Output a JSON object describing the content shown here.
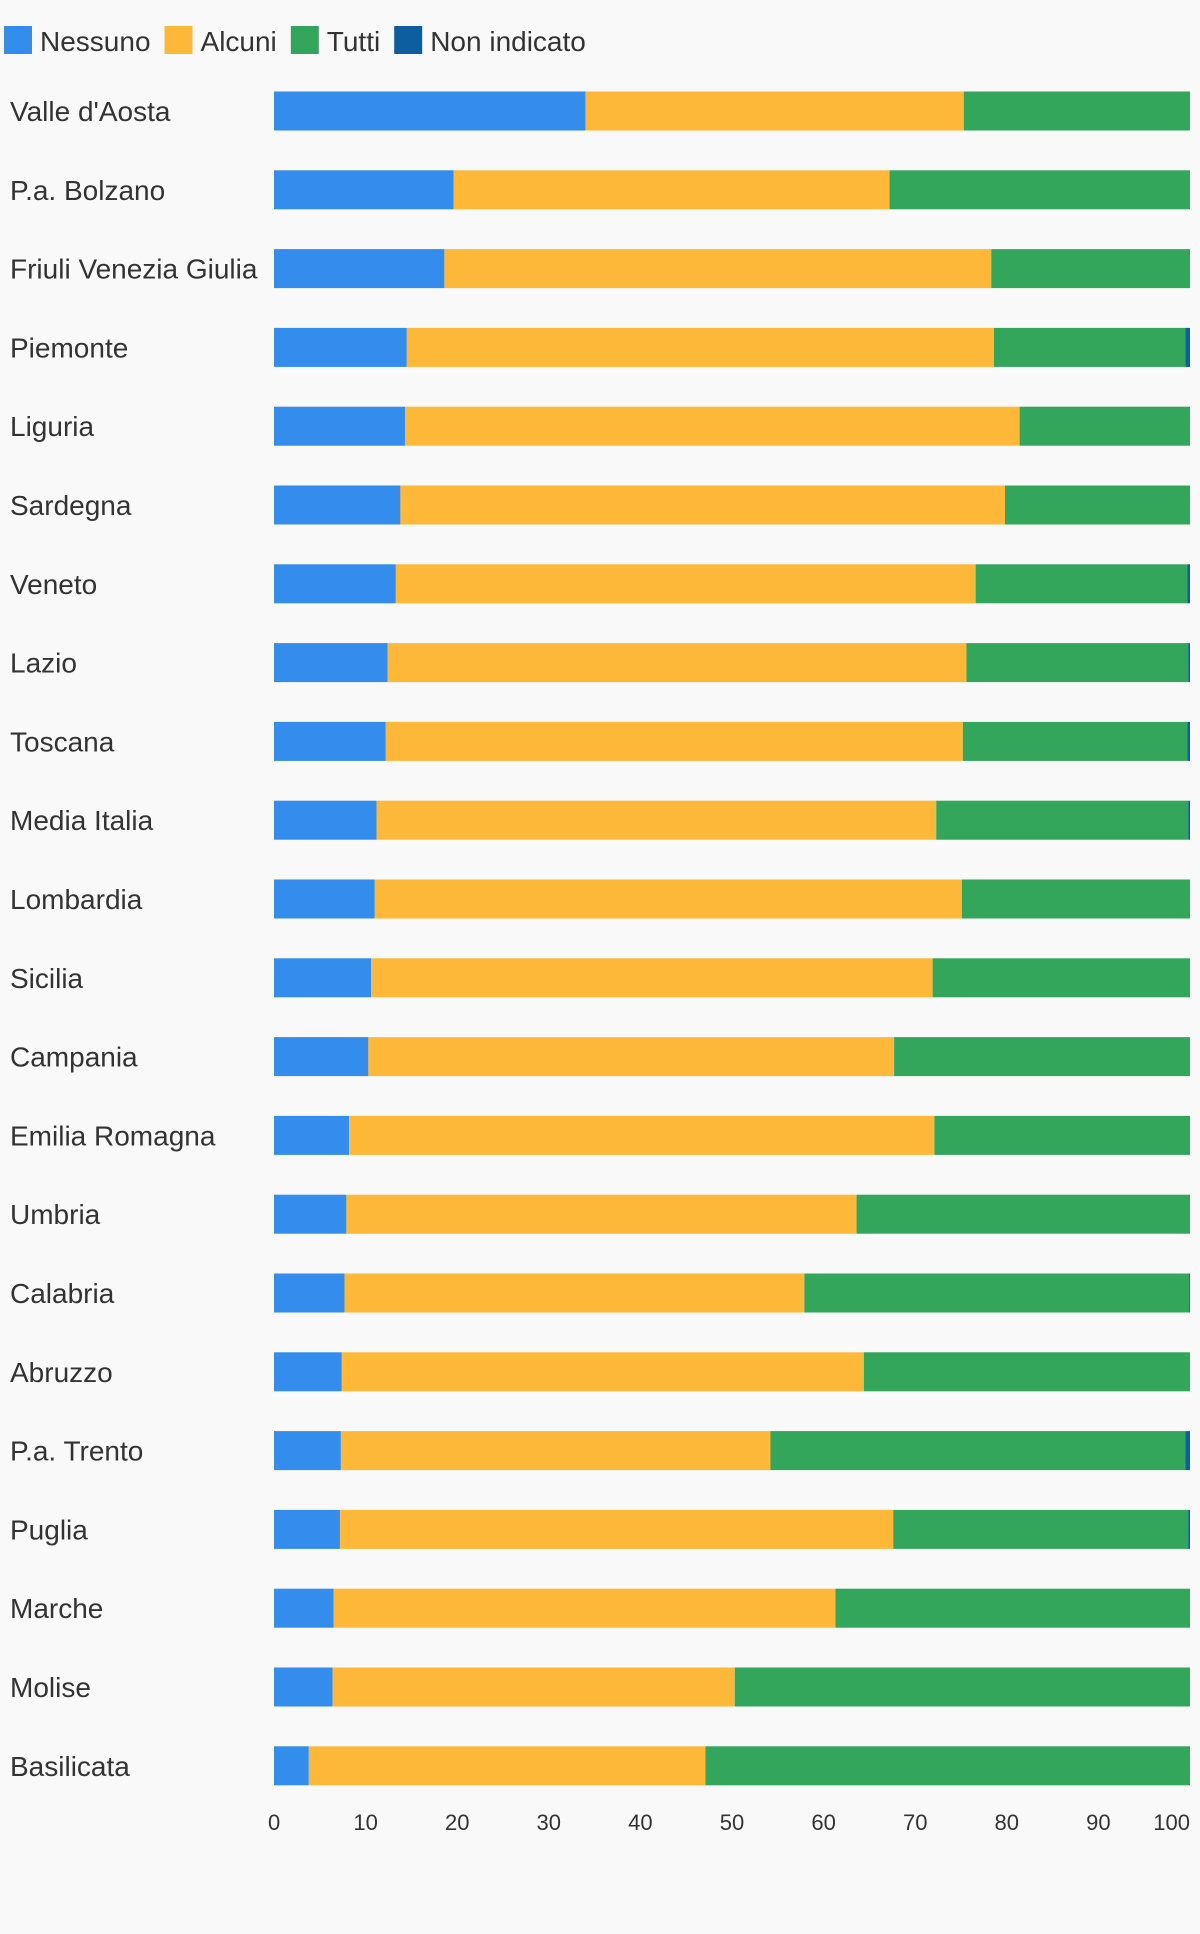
{
  "chart_data": {
    "type": "bar",
    "orientation": "horizontal",
    "stacked": true,
    "legend_position": "top-left",
    "grid": false,
    "xlim": [
      0,
      100
    ],
    "xticks": [
      "0",
      "10",
      "20",
      "30",
      "40",
      "50",
      "60",
      "70",
      "80",
      "90",
      "100"
    ],
    "categories": [
      "Valle d'Aosta",
      "P.a. Bolzano",
      "Friuli Venezia Giulia",
      "Piemonte",
      "Liguria",
      "Sardegna",
      "Veneto",
      "Lazio",
      "Toscana",
      "Media Italia",
      "Lombardia",
      "Sicilia",
      "Campania",
      "Emilia Romagna",
      "Umbria",
      "Calabria",
      "Abruzzo",
      "P.a. Trento",
      "Puglia",
      "Marche",
      "Molise",
      "Basilicata"
    ],
    "series": [
      {
        "name": "Nessuno",
        "color": "#348ced",
        "values": [
          34.0,
          19.6,
          18.6,
          14.5,
          14.3,
          13.8,
          13.3,
          12.4,
          12.2,
          11.2,
          11.0,
          10.6,
          10.3,
          8.2,
          7.9,
          7.7,
          7.4,
          7.3,
          7.2,
          6.5,
          6.4,
          3.8
        ]
      },
      {
        "name": "Alcuni",
        "color": "#fdb739",
        "values": [
          41.3,
          47.6,
          59.7,
          64.1,
          67.1,
          66.0,
          63.3,
          63.2,
          63.0,
          61.1,
          64.1,
          61.3,
          57.4,
          63.9,
          55.7,
          50.2,
          57.0,
          46.9,
          60.4,
          54.8,
          43.9,
          43.3
        ]
      },
      {
        "name": "Tutti",
        "color": "#33a65c",
        "values": [
          24.7,
          32.8,
          21.7,
          20.9,
          18.6,
          20.2,
          23.1,
          24.2,
          24.5,
          27.5,
          24.9,
          28.1,
          32.3,
          27.9,
          36.4,
          42.0,
          35.6,
          45.3,
          32.2,
          38.7,
          49.7,
          52.9
        ]
      },
      {
        "name": "Non indicato",
        "color": "#0c5ea1",
        "values": [
          0.0,
          0.0,
          0.0,
          0.5,
          0.0,
          0.0,
          0.3,
          0.2,
          0.3,
          0.2,
          0.0,
          0.0,
          0.0,
          0.0,
          0.0,
          0.1,
          0.0,
          0.5,
          0.2,
          0.0,
          0.0,
          0.0
        ]
      }
    ]
  }
}
